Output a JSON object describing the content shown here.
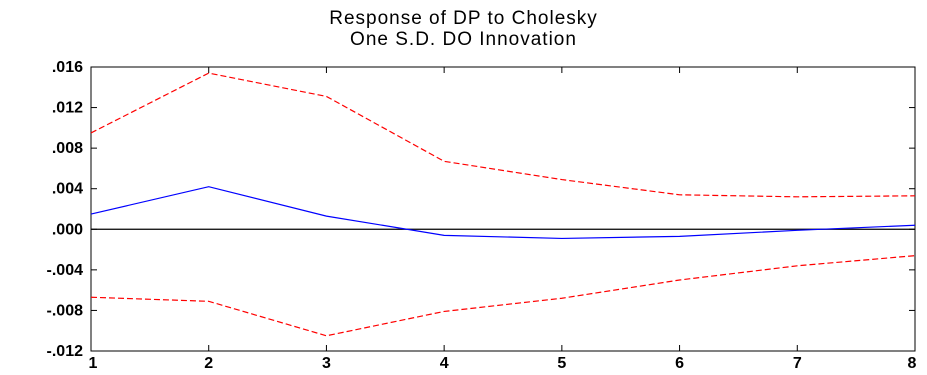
{
  "chart_data": {
    "type": "line",
    "title_lines": [
      "Response of DP to Cholesky",
      "One S.D. DO Innovation"
    ],
    "xlabel": "",
    "ylabel": "",
    "x": [
      1,
      2,
      3,
      4,
      5,
      6,
      7,
      8
    ],
    "xlim": [
      1,
      8
    ],
    "ylim": [
      -0.012,
      0.016
    ],
    "yticks": [
      0.016,
      0.012,
      0.008,
      0.004,
      0.0,
      -0.004,
      -0.008,
      -0.012
    ],
    "ytick_labels": [
      ".016",
      ".012",
      ".008",
      ".004",
      ".000",
      "-.004",
      "-.008",
      "-.012"
    ],
    "xtick_labels": [
      "1",
      "2",
      "3",
      "4",
      "5",
      "6",
      "7",
      "8"
    ],
    "zero_line": true,
    "grid": false,
    "legend": "none",
    "series": [
      {
        "role": "response",
        "color": "#0000ff",
        "style": "solid",
        "values": [
          0.0015,
          0.0042,
          0.0013,
          -0.0006,
          -0.0009,
          -0.0007,
          -0.0001,
          0.0004
        ]
      },
      {
        "role": "upper band",
        "color": "#ff0000",
        "style": "dashed",
        "values": [
          0.0095,
          0.0154,
          0.0131,
          0.0067,
          0.0049,
          0.0034,
          0.0032,
          0.0033
        ]
      },
      {
        "role": "lower band",
        "color": "#ff0000",
        "style": "dashed",
        "values": [
          -0.0067,
          -0.0071,
          -0.0105,
          -0.0081,
          -0.0068,
          -0.005,
          -0.0036,
          -0.0026
        ]
      }
    ]
  }
}
